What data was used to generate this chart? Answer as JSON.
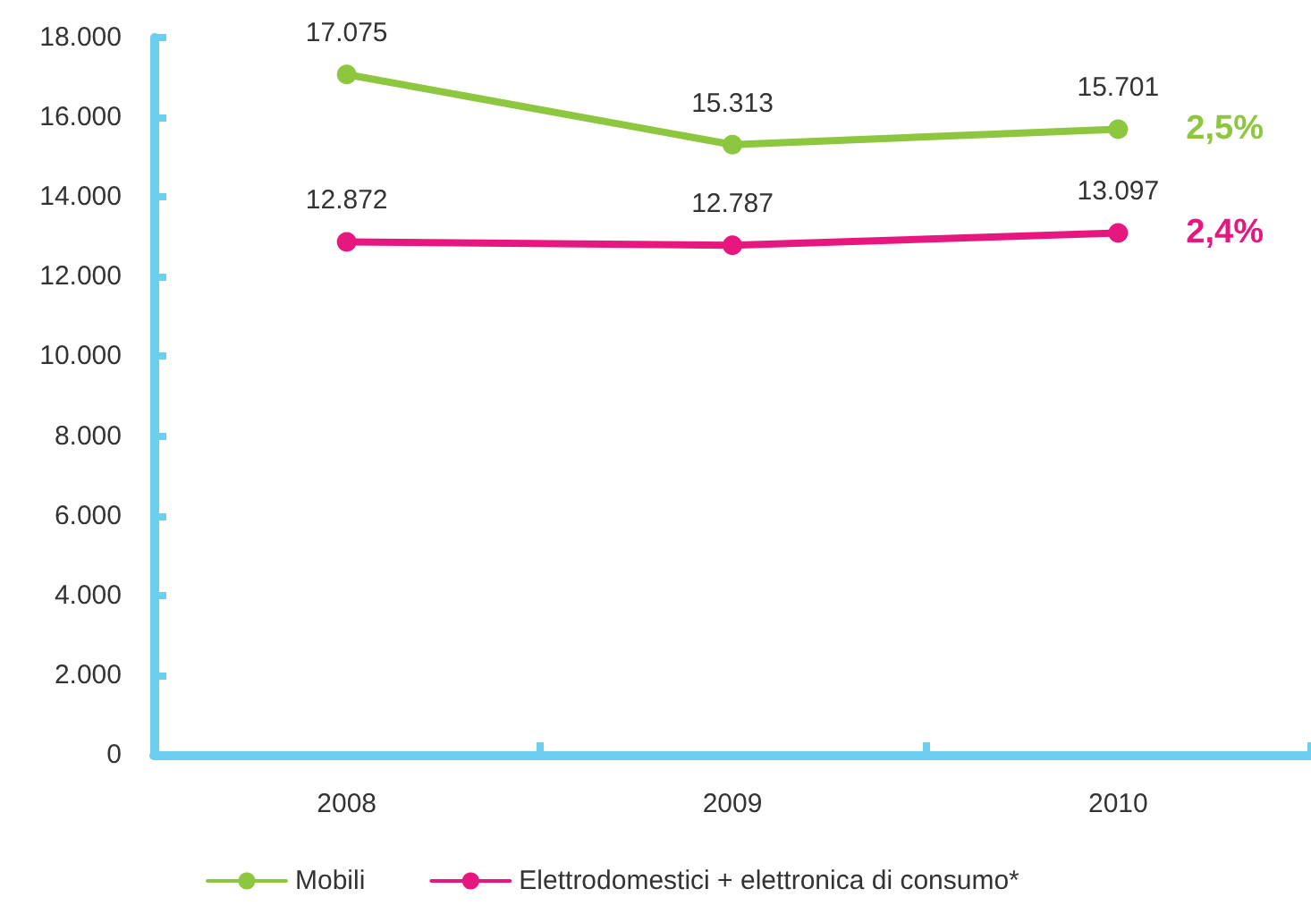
{
  "chart_data": {
    "type": "line",
    "categories": [
      "2008",
      "2009",
      "2010"
    ],
    "series": [
      {
        "name": "Mobili",
        "color": "#8dc63f",
        "values": [
          17075,
          15313,
          15701
        ],
        "value_labels": [
          "17.075",
          "15.313",
          "15.701"
        ]
      },
      {
        "name": "Elettrodomestici + elettronica di consumo*",
        "color": "#e6177f",
        "values": [
          12872,
          12787,
          13097
        ],
        "value_labels": [
          "12.872",
          "12.787",
          "13.097"
        ]
      }
    ],
    "ylim": [
      0,
      18000
    ],
    "yticks": [
      0,
      {
        "value": 2000,
        "label": "2.000"
      },
      {
        "value": 4000,
        "label": "4.000"
      },
      {
        "value": 6000,
        "label": "6.000"
      },
      {
        "value": 8000,
        "label": "8.000"
      },
      {
        "value": 10000,
        "label": "10.000"
      },
      {
        "value": 12000,
        "label": "12.000"
      },
      {
        "value": 14000,
        "label": "14.000"
      },
      {
        "value": 16000,
        "label": "16.000"
      },
      {
        "value": 18000,
        "label": "18.000"
      }
    ],
    "annotations": [
      {
        "text": "2,5%",
        "x": "2010",
        "y": 15701
      },
      {
        "text": "2,4%",
        "x": "2010",
        "y": 13097
      }
    ],
    "grid": false,
    "legend": "bottom",
    "marker": "circle",
    "line_style": "solid"
  }
}
